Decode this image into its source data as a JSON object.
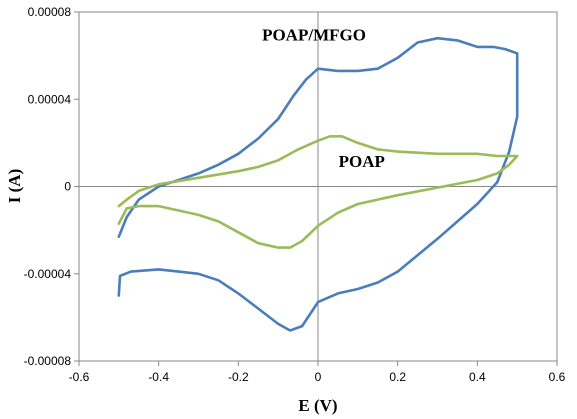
{
  "chart_data": {
    "type": "line",
    "title": "",
    "xlabel": "E (V)",
    "ylabel": "I (A)",
    "xlim": [
      -0.6,
      0.6
    ],
    "ylim": [
      -8e-05,
      8e-05
    ],
    "x_ticks": [
      -0.6,
      -0.4,
      -0.2,
      0,
      0.2,
      0.4,
      0.6
    ],
    "x_tick_labels": [
      "-0.6",
      "-0.4",
      "-0.2",
      "0",
      "0.2",
      "0.4",
      "0.6"
    ],
    "y_ticks": [
      -8e-05,
      -4e-05,
      0,
      4e-05,
      8e-05
    ],
    "y_tick_labels": [
      "-0.00008",
      "-0.00004",
      "0",
      "0.00004",
      "0.00008"
    ],
    "grid": false,
    "legend": "none",
    "annotations": [
      {
        "text": "POAP/MFGO",
        "x": -0.01,
        "y": 6.7e-05
      },
      {
        "text": "POAP",
        "x": 0.11,
        "y": 9e-06
      }
    ],
    "series": [
      {
        "name": "POAP/MFGO",
        "color": "#4a7ebb",
        "points": [
          [
            -0.5,
            -5e-05
          ],
          [
            -0.497,
            -4.1e-05
          ],
          [
            -0.47,
            -3.9e-05
          ],
          [
            -0.4,
            -3.8e-05
          ],
          [
            -0.35,
            -3.9e-05
          ],
          [
            -0.3,
            -4e-05
          ],
          [
            -0.25,
            -4.3e-05
          ],
          [
            -0.2,
            -4.9e-05
          ],
          [
            -0.15,
            -5.6e-05
          ],
          [
            -0.1,
            -6.3e-05
          ],
          [
            -0.07,
            -6.6e-05
          ],
          [
            -0.04,
            -6.4e-05
          ],
          [
            0,
            -5.3e-05
          ],
          [
            0.05,
            -4.9e-05
          ],
          [
            0.1,
            -4.7e-05
          ],
          [
            0.15,
            -4.4e-05
          ],
          [
            0.2,
            -3.9e-05
          ],
          [
            0.3,
            -2.4e-05
          ],
          [
            0.4,
            -8e-06
          ],
          [
            0.45,
            2e-06
          ],
          [
            0.48,
            1.6e-05
          ],
          [
            0.5,
            3.2e-05
          ],
          [
            0.5,
            6.1e-05
          ],
          [
            0.47,
            6.3e-05
          ],
          [
            0.44,
            6.4e-05
          ],
          [
            0.4,
            6.4e-05
          ],
          [
            0.35,
            6.7e-05
          ],
          [
            0.3,
            6.8e-05
          ],
          [
            0.25,
            6.6e-05
          ],
          [
            0.2,
            5.9e-05
          ],
          [
            0.15,
            5.4e-05
          ],
          [
            0.1,
            5.3e-05
          ],
          [
            0.05,
            5.3e-05
          ],
          [
            0,
            5.4e-05
          ],
          [
            -0.03,
            4.9e-05
          ],
          [
            -0.06,
            4.2e-05
          ],
          [
            -0.1,
            3.1e-05
          ],
          [
            -0.15,
            2.2e-05
          ],
          [
            -0.2,
            1.5e-05
          ],
          [
            -0.25,
            1e-05
          ],
          [
            -0.3,
            6e-06
          ],
          [
            -0.35,
            3e-06
          ],
          [
            -0.4,
            0.0
          ],
          [
            -0.45,
            -6e-06
          ],
          [
            -0.48,
            -1.4e-05
          ],
          [
            -0.5,
            -2.3e-05
          ]
        ]
      },
      {
        "name": "POAP",
        "color": "#9bbb59",
        "points": [
          [
            -0.5,
            -1.7e-05
          ],
          [
            -0.48,
            -1e-05
          ],
          [
            -0.45,
            -9e-06
          ],
          [
            -0.4,
            -9e-06
          ],
          [
            -0.35,
            -1.1e-05
          ],
          [
            -0.3,
            -1.3e-05
          ],
          [
            -0.25,
            -1.6e-05
          ],
          [
            -0.2,
            -2.1e-05
          ],
          [
            -0.15,
            -2.6e-05
          ],
          [
            -0.1,
            -2.8e-05
          ],
          [
            -0.07,
            -2.8e-05
          ],
          [
            -0.04,
            -2.5e-05
          ],
          [
            0,
            -1.8e-05
          ],
          [
            0.05,
            -1.2e-05
          ],
          [
            0.1,
            -8e-06
          ],
          [
            0.15,
            -6e-06
          ],
          [
            0.2,
            -4e-06
          ],
          [
            0.3,
            -5e-07
          ],
          [
            0.4,
            3e-06
          ],
          [
            0.45,
            6e-06
          ],
          [
            0.48,
            1e-05
          ],
          [
            0.5,
            1.4e-05
          ],
          [
            0.45,
            1.4e-05
          ],
          [
            0.4,
            1.5e-05
          ],
          [
            0.3,
            1.5e-05
          ],
          [
            0.2,
            1.6e-05
          ],
          [
            0.15,
            1.7e-05
          ],
          [
            0.1,
            2e-05
          ],
          [
            0.06,
            2.3e-05
          ],
          [
            0.03,
            2.3e-05
          ],
          [
            0.0,
            2.1e-05
          ],
          [
            -0.05,
            1.7e-05
          ],
          [
            -0.1,
            1.2e-05
          ],
          [
            -0.15,
            9e-06
          ],
          [
            -0.2,
            7e-06
          ],
          [
            -0.3,
            4e-06
          ],
          [
            -0.4,
            1e-06
          ],
          [
            -0.45,
            -2e-06
          ],
          [
            -0.48,
            -6e-06
          ],
          [
            -0.5,
            -9e-06
          ]
        ]
      }
    ]
  }
}
